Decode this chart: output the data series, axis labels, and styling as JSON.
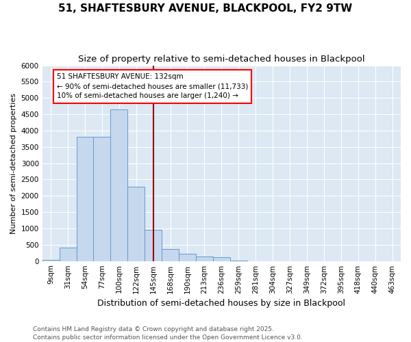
{
  "title": "51, SHAFTESBURY AVENUE, BLACKPOOL, FY2 9TW",
  "subtitle": "Size of property relative to semi-detached houses in Blackpool",
  "xlabel": "Distribution of semi-detached houses by size in Blackpool",
  "ylabel": "Number of semi-detached properties",
  "categories": [
    "9sqm",
    "31sqm",
    "54sqm",
    "77sqm",
    "100sqm",
    "122sqm",
    "145sqm",
    "168sqm",
    "190sqm",
    "213sqm",
    "236sqm",
    "259sqm",
    "281sqm",
    "304sqm",
    "327sqm",
    "349sqm",
    "372sqm",
    "395sqm",
    "418sqm",
    "440sqm",
    "463sqm"
  ],
  "values": [
    30,
    420,
    3800,
    3820,
    4640,
    2280,
    960,
    380,
    220,
    130,
    120,
    20,
    0,
    0,
    0,
    0,
    0,
    0,
    0,
    0,
    0
  ],
  "bar_color": "#c5d8ed",
  "bar_edge_color": "#6699cc",
  "vline_x": 6.0,
  "vline_color": "#990000",
  "annotation_text": "51 SHAFTESBURY AVENUE: 132sqm\n← 90% of semi-detached houses are smaller (11,733)\n10% of semi-detached houses are larger (1,240) →",
  "ylim": [
    0,
    6000
  ],
  "yticks": [
    0,
    500,
    1000,
    1500,
    2000,
    2500,
    3000,
    3500,
    4000,
    4500,
    5000,
    5500,
    6000
  ],
  "bg_color": "#dce8f3",
  "grid_color": "#ffffff",
  "footer": "Contains HM Land Registry data © Crown copyright and database right 2025.\nContains public sector information licensed under the Open Government Licence v3.0.",
  "title_fontsize": 11,
  "subtitle_fontsize": 9.5,
  "xlabel_fontsize": 9,
  "ylabel_fontsize": 8,
  "tick_fontsize": 7.5,
  "annotation_fontsize": 7.5,
  "footer_fontsize": 6.5
}
